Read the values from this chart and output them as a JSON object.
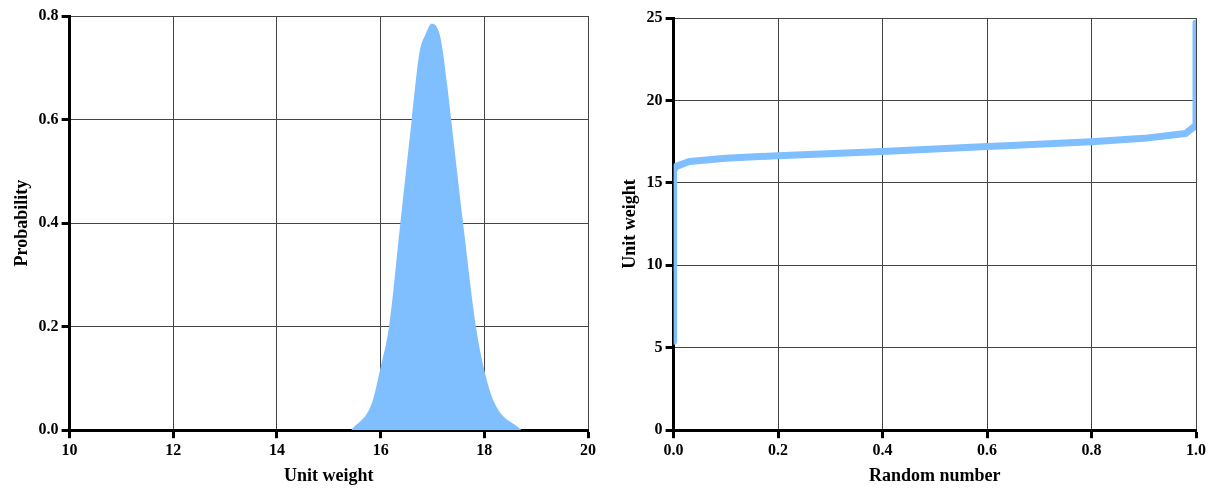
{
  "chart_data": [
    {
      "type": "area",
      "xlabel": "Unit weight",
      "ylabel": "Probability",
      "color": "#80bfff",
      "x": [
        15.43,
        15.83,
        16.0,
        16.16,
        16.38,
        16.6,
        16.75,
        16.87,
        16.98,
        17.15,
        17.28,
        17.36,
        17.59,
        17.84,
        18.0,
        18.2,
        18.72
      ],
      "values": [
        0,
        0.052,
        0.122,
        0.199,
        0.4,
        0.6,
        0.73,
        0.765,
        0.785,
        0.76,
        0.67,
        0.6,
        0.4,
        0.199,
        0.116,
        0.052,
        0
      ],
      "xlim": [
        10,
        20
      ],
      "xticks": [
        10,
        12,
        14,
        16,
        18,
        20
      ],
      "ylim": [
        0,
        0.8
      ],
      "yticks": [
        {
          "value": 0,
          "label": "0.0"
        },
        0.2,
        0.4,
        0.6,
        0.8
      ],
      "grid": true
    },
    {
      "type": "line",
      "xlabel": "Random number",
      "ylabel": "Unit weight",
      "color": "#80bfff",
      "x": [
        0,
        0,
        0.005,
        0.03,
        0.1,
        0.2,
        0.4,
        0.6,
        0.8,
        0.9,
        0.98,
        1.0,
        1.0
      ],
      "values": [
        5.4,
        15.75,
        16.0,
        16.3,
        16.5,
        16.65,
        16.9,
        17.2,
        17.5,
        17.7,
        18.0,
        18.5,
        24.7
      ],
      "xlim": [
        0,
        1
      ],
      "xticks": [
        {
          "value": 0,
          "label": "0.0"
        },
        0.2,
        0.4,
        0.6,
        0.8,
        {
          "value": 1,
          "label": "1.0"
        }
      ],
      "ylim": [
        0,
        25
      ],
      "yticks": [
        0,
        5,
        10,
        15,
        20,
        25
      ],
      "grid": true
    }
  ]
}
